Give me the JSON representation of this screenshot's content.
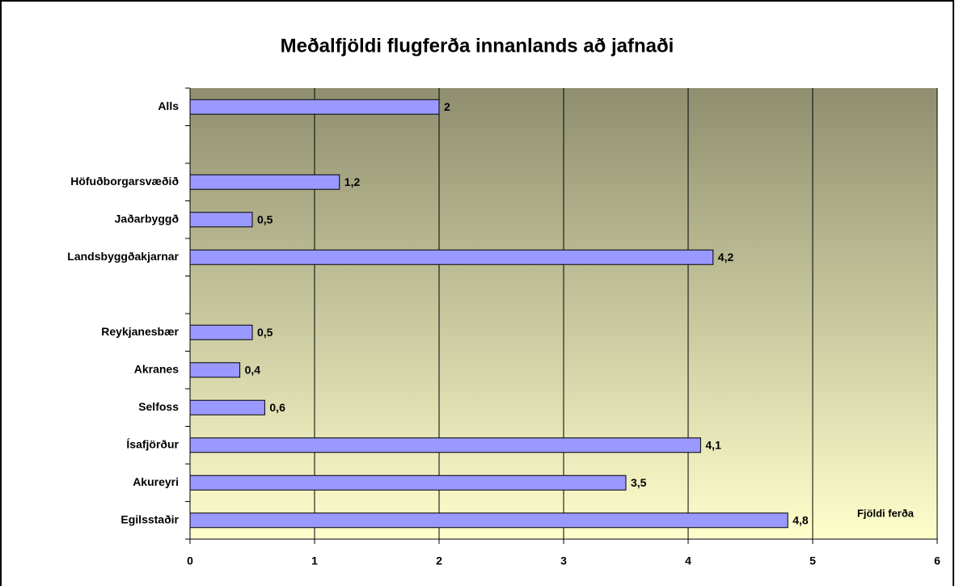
{
  "chart_data": {
    "type": "bar",
    "orientation": "horizontal",
    "title": "Meðalfjöldi flugferða innanlands að jafnaði",
    "x_label": "Fjöldi ferða",
    "categories": [
      "Alls",
      null,
      "Höfuðborgarsvæðið",
      "Jaðarbyggð",
      "Landsbyggðakjarnar",
      null,
      "Reykjanesbær",
      "Akranes",
      "Selfoss",
      "Ísafjörður",
      "Akureyri",
      "Egilsstaðir"
    ],
    "values": [
      2,
      null,
      1.2,
      0.5,
      4.2,
      null,
      0.5,
      0.4,
      0.6,
      4.1,
      3.5,
      4.8
    ],
    "value_labels": [
      "2",
      null,
      "1,2",
      "0,5",
      "4,2",
      null,
      "0,5",
      "0,4",
      "0,6",
      "4,1",
      "3,5",
      "4,8"
    ],
    "color": "#9999ff",
    "xlim": [
      0,
      6
    ],
    "xticks": [
      0,
      1,
      2,
      3,
      4,
      5,
      6
    ],
    "grid": true
  }
}
